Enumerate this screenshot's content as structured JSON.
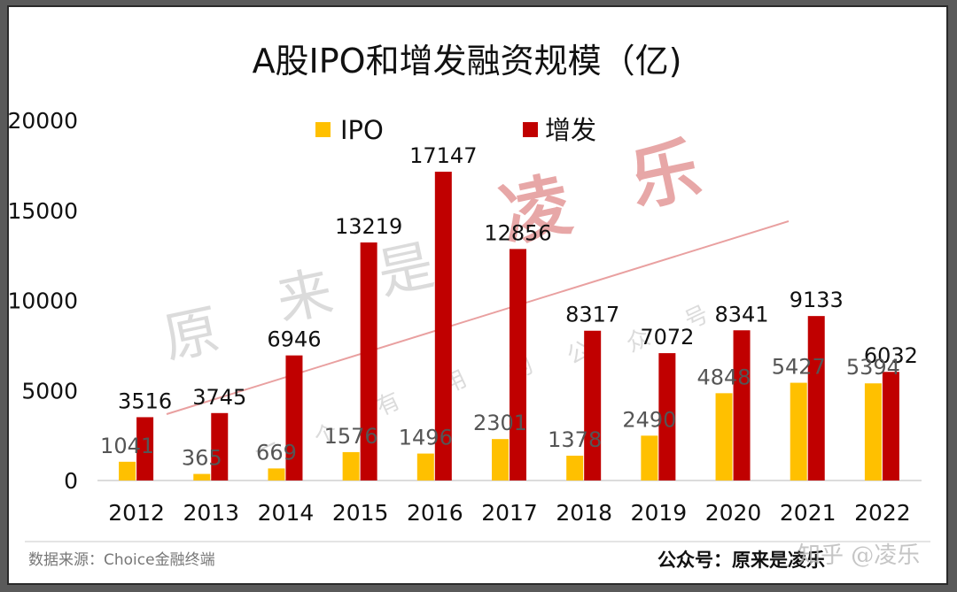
{
  "chart_data": {
    "type": "bar",
    "title": "A股IPO和增发融资规模（亿)",
    "categories": [
      "2012",
      "2013",
      "2014",
      "2015",
      "2016",
      "2017",
      "2018",
      "2019",
      "2020",
      "2021",
      "2022"
    ],
    "series": [
      {
        "name": "IPO",
        "color": "#FFC000",
        "values": [
          1041,
          365,
          669,
          1576,
          1496,
          2301,
          1378,
          2490,
          4848,
          5427,
          5394
        ]
      },
      {
        "name": "增发",
        "color": "#C00000",
        "values": [
          3516,
          3745,
          6946,
          13219,
          17147,
          12856,
          8317,
          7072,
          8341,
          9133,
          6032
        ]
      }
    ],
    "ylim": [
      0,
      20000
    ],
    "yticks": [
      0,
      5000,
      10000,
      15000,
      20000
    ],
    "legend": "top",
    "grid": false
  },
  "footer": {
    "source": "数据来源：Choice金融终端",
    "account": "公众号：原来是凌乐"
  },
  "watermarks": {
    "center": "原 来 是 凌 乐",
    "vertical": "一个有用的公众号",
    "platform": "知乎 @凌乐"
  }
}
